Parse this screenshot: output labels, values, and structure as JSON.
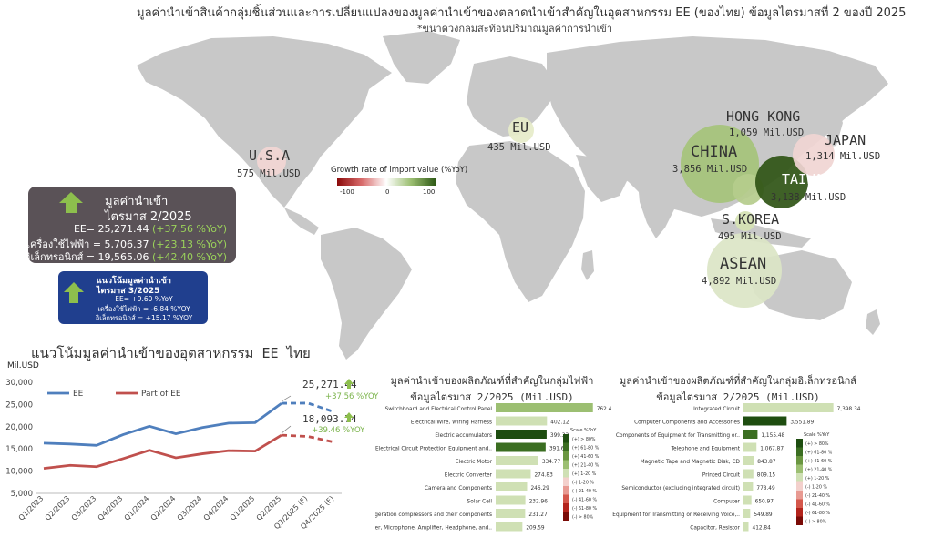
{
  "header": {
    "title": "มูลค่านำเข้าสินค้ากลุ่มชิ้นส่วนและการเปลี่ยนแปลงของมูลค่านำเข้าของตลาดนำเข้าสำคัญในอุตสาหกรรม EE (ของไทย) ข้อมูลไตรมาสที่ 2 ของปี 2025",
    "subtitle": "*ขนาดวงกลมสะท้อนปริมาณมูลค่าการนำเข้า"
  },
  "legend": {
    "title": "Growth rate of import value (%YoY)",
    "min": "-100",
    "mid": "0",
    "max": "100"
  },
  "regions": [
    {
      "name": "U.S.A",
      "value": "575 Mil.USD",
      "color": "#f2d6d4"
    },
    {
      "name": "EU",
      "value": "435 Mil.USD",
      "color": "#e6ecc9"
    },
    {
      "name": "HONG KONG",
      "value": "1,059 Mil.USD",
      "color": "#b5cc8c"
    },
    {
      "name": "JAPAN",
      "value": "1,314 Mil.USD",
      "color": "#f0d5d3"
    },
    {
      "name": "CHINA",
      "value": "3,856 Mil.USD",
      "color": "#a5c37a"
    },
    {
      "name": "TAIWAN",
      "value": "3,138 Mil.USD",
      "color": "#2f5415"
    },
    {
      "name": "S.KOREA",
      "value": "495 Mil.USD",
      "color": "#d5e2b3"
    },
    {
      "name": "ASEAN",
      "value": "4,892 Mil.USD",
      "color": "#dbe5c6"
    }
  ],
  "summary_box": {
    "title_line1": "มูลค่านำเข้า",
    "title_line2": "ไตรมาส 2/2025",
    "lines": [
      {
        "label": "EE= 25,271.44",
        "change": "(+37.56 %YoY)"
      },
      {
        "label": "เครื่องใช้ไฟฟ้า = 5,706.37",
        "change": "(+23.13 %YoY)"
      },
      {
        "label": "อิเล็กทรอนิกส์ = 19,565.06",
        "change": "(+42.40 %YoY)"
      }
    ]
  },
  "trend_box": {
    "title_line1": "แนวโน้มมูลค่านำเข้า",
    "title_line2": "ไตรมาส 3/2025",
    "lines": [
      "EE= +9.60 %YoY",
      "เครื่องใช้ไฟฟ้า = -6.84 %YOY",
      "อิเล็กทรอนิกส์ = +15.17 %YOY"
    ]
  },
  "line_section": {
    "title": "แนวโน้มมูลค่านำเข้าของอุตสาหกรรม EE ไทย",
    "unit": "Mil.USD",
    "ee_point": "25,271.44",
    "ee_change": "+37.56 %YOY",
    "part_point": "18,093.74",
    "part_change": "+39.46 %YOY"
  },
  "bar_section_1": {
    "title_line1": "มูลค่านำเข้าของผลิตภัณฑ์ที่สำคัญในกลุ่มไฟฟ้า",
    "title_line2": "ข้อมูลไตรมาส 2/2025 (Mil.USD)"
  },
  "bar_section_2": {
    "title_line1": "มูลค่านำเข้าของผลิตภัณฑ์ที่สำคัญในกลุ่มอิเล็กทรอนิกส์",
    "title_line2": "ข้อมูลไตรมาส 2/2025 (Mil.USD)"
  },
  "scale_legend": {
    "title": "Scale %YoY",
    "items": [
      "(+) > 80%",
      "(+) 61-80 %",
      "(+) 41-60 %",
      "(+) 21-40 %",
      "(+) 1-20 %",
      "(-) 1-20 %",
      "(-) 21-40 %",
      "(-) 41-60 %",
      "(-) 61-80 %",
      "(-) > 80%"
    ],
    "colors": [
      "#1e4d10",
      "#3b6e22",
      "#6a9640",
      "#9cbf72",
      "#cfe0b4",
      "#f3d0cc",
      "#e89a92",
      "#d4574b",
      "#b3241c",
      "#7a0b07"
    ]
  },
  "chart_data": [
    {
      "type": "line",
      "title": "แนวโน้มมูลค่านำเข้าของอุตสาหกรรม EE ไทย",
      "ylabel": "Mil.USD",
      "ylim": [
        5000,
        30000
      ],
      "yticks": [
        "5,000",
        "10,000",
        "15,000",
        "20,000",
        "25,000",
        "30,000"
      ],
      "categories": [
        "Q1/2023",
        "Q2/2023",
        "Q3/2023",
        "Q4/2023",
        "Q1/2024",
        "Q2/2024",
        "Q3/2024",
        "Q4/2024",
        "Q1/2025",
        "Q2/2025",
        "Q3/2025 (F)",
        "Q4/2025 (F)"
      ],
      "series": [
        {
          "name": "EE",
          "color": "#4f7fbd",
          "values": [
            16300,
            16100,
            15800,
            18200,
            20100,
            18400,
            19800,
            20800,
            20900,
            25271.44,
            25300,
            23300
          ]
        },
        {
          "name": "Part of EE",
          "color": "#c0504d",
          "values": [
            10600,
            11300,
            11000,
            12800,
            14700,
            13000,
            13900,
            14600,
            14500,
            18093.74,
            17800,
            16500
          ]
        }
      ],
      "forecast_from_index": 9
    },
    {
      "type": "bar",
      "title": "มูลค่านำเข้าของผลิตภัณฑ์ที่สำคัญในกลุ่มไฟฟ้า",
      "categories": [
        "Switchboard and Electrical Control Panel",
        "Electrical Wire, Wiring Harness",
        "Electric accumulators",
        "Electrical Circuit Protection Equipment and..",
        "Electric Motor",
        "Electric Converter",
        "Camera and Components",
        "Solar Cell",
        "Refrigeration compressors and their components",
        "Speaker, Microphone, Amplifier, Headphone, and.."
      ],
      "values": [
        762.45,
        402.12,
        399.33,
        391.68,
        334.77,
        274.83,
        246.29,
        232.96,
        231.27,
        209.59
      ],
      "labels": [
        "762.45",
        "402.12",
        "399.33",
        "391.68",
        "334.77",
        "274.83",
        "246.29",
        "232.96",
        "231.27",
        "209.59"
      ],
      "colors": [
        "#9cbf72",
        "#cfe0b4",
        "#1e4d10",
        "#3b6e22",
        "#cfe0b4",
        "#cfe0b4",
        "#cfe0b4",
        "#cfe0b4",
        "#cfe0b4",
        "#cfe0b4"
      ],
      "xlim": [
        0,
        800
      ]
    },
    {
      "type": "bar",
      "title": "มูลค่านำเข้าของผลิตภัณฑ์ที่สำคัญในกลุ่มอิเล็กทรอนิกส์",
      "categories": [
        "Integrated Circuit",
        "Computer Components and Accessories",
        "Components of Equipment for Transmitting or..",
        "Telephone and Equipment",
        "Magnetic Tape and Magnetic Disk, CD",
        "Printed Circuit",
        "Semiconductor (excluding integrated circuit)",
        "Computer",
        "Equipment for Transmitting or Receiving Voice,..",
        "Capacitor, Resistor"
      ],
      "values": [
        7398.34,
        3551.89,
        1155.48,
        1067.87,
        843.87,
        809.15,
        778.49,
        650.97,
        549.89,
        412.84
      ],
      "labels": [
        "7,398.34",
        "3,551.89",
        "1,155.48",
        "1,067.87",
        "843.87",
        "809.15",
        "778.49",
        "650.97",
        "549.89",
        "412.84"
      ],
      "colors": [
        "#cfe0b4",
        "#1e4d10",
        "#3b6e22",
        "#cfe0b4",
        "#cfe0b4",
        "#cfe0b4",
        "#cfe0b4",
        "#cfe0b4",
        "#cfe0b4",
        "#cfe0b4"
      ],
      "xlim": [
        0,
        7500
      ]
    }
  ]
}
